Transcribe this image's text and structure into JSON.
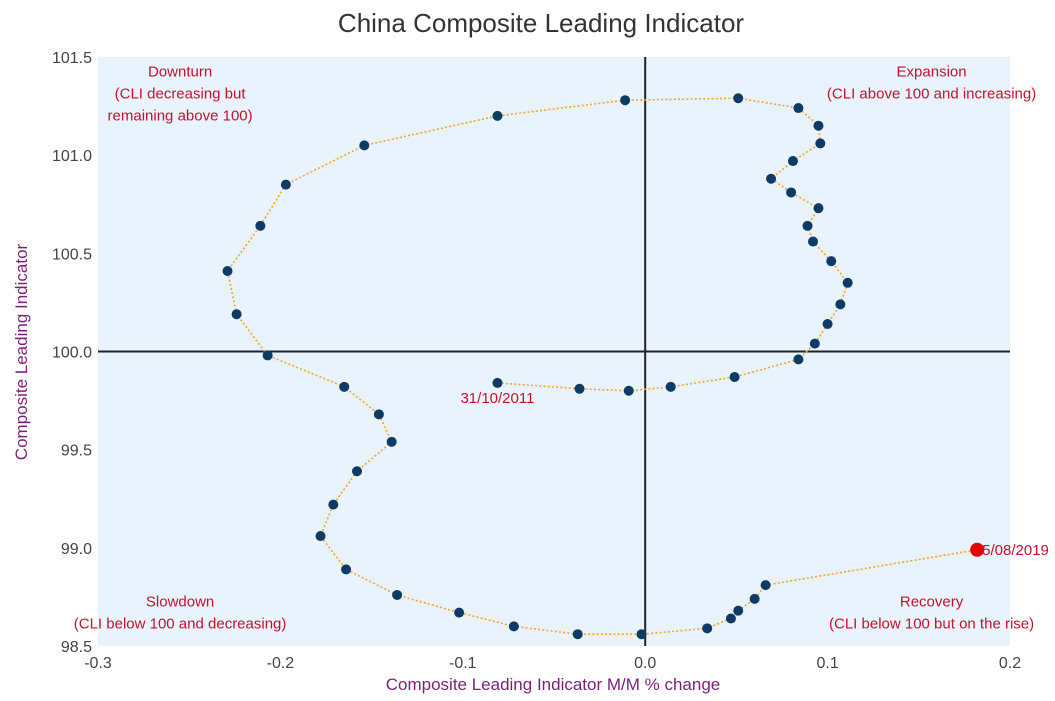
{
  "chart_data": {
    "type": "scatter",
    "title": "China Composite Leading Indicator",
    "xlabel": "Composite Leading Indicator M/M % change",
    "ylabel": "Composite Leading Indicator",
    "xlim": [
      -0.3,
      0.2
    ],
    "ylim": [
      98.5,
      101.5
    ],
    "x_ticks": [
      "-0.3",
      "-0.2",
      "-0.1",
      "0.0",
      "0.1",
      "0.2"
    ],
    "y_ticks": [
      "98.5",
      "99.0",
      "99.5",
      "100.0",
      "100.5",
      "101.0",
      "101.5"
    ],
    "grid": false,
    "reference_lines": {
      "x": 0.0,
      "y": 100.0
    },
    "colors": {
      "plot_background": "#e8f3fd",
      "point": "#0d3b66",
      "last_point": "#e60000",
      "connector": "#f0a830",
      "annotation": "#c8102e",
      "axis_title": "#7a1f7a"
    },
    "points": [
      {
        "x": -0.081,
        "y": 99.84
      },
      {
        "x": -0.036,
        "y": 99.81
      },
      {
        "x": -0.009,
        "y": 99.8
      },
      {
        "x": 0.014,
        "y": 99.82
      },
      {
        "x": 0.049,
        "y": 99.87
      },
      {
        "x": 0.084,
        "y": 99.96
      },
      {
        "x": 0.093,
        "y": 100.04
      },
      {
        "x": 0.1,
        "y": 100.14
      },
      {
        "x": 0.107,
        "y": 100.24
      },
      {
        "x": 0.111,
        "y": 100.35
      },
      {
        "x": 0.102,
        "y": 100.46
      },
      {
        "x": 0.092,
        "y": 100.56
      },
      {
        "x": 0.089,
        "y": 100.64
      },
      {
        "x": 0.095,
        "y": 100.73
      },
      {
        "x": 0.08,
        "y": 100.81
      },
      {
        "x": 0.069,
        "y": 100.88
      },
      {
        "x": 0.081,
        "y": 100.97
      },
      {
        "x": 0.096,
        "y": 101.06
      },
      {
        "x": 0.095,
        "y": 101.15
      },
      {
        "x": 0.084,
        "y": 101.24
      },
      {
        "x": 0.051,
        "y": 101.29
      },
      {
        "x": -0.011,
        "y": 101.28
      },
      {
        "x": -0.081,
        "y": 101.2
      },
      {
        "x": -0.154,
        "y": 101.05
      },
      {
        "x": -0.197,
        "y": 100.85
      },
      {
        "x": -0.211,
        "y": 100.64
      },
      {
        "x": -0.229,
        "y": 100.41
      },
      {
        "x": -0.224,
        "y": 100.19
      },
      {
        "x": -0.207,
        "y": 99.98
      },
      {
        "x": -0.165,
        "y": 99.82
      },
      {
        "x": -0.146,
        "y": 99.68
      },
      {
        "x": -0.139,
        "y": 99.54
      },
      {
        "x": -0.158,
        "y": 99.39
      },
      {
        "x": -0.171,
        "y": 99.22
      },
      {
        "x": -0.178,
        "y": 99.06
      },
      {
        "x": -0.164,
        "y": 98.89
      },
      {
        "x": -0.136,
        "y": 98.76
      },
      {
        "x": -0.102,
        "y": 98.67
      },
      {
        "x": -0.072,
        "y": 98.6
      },
      {
        "x": -0.037,
        "y": 98.56
      },
      {
        "x": -0.002,
        "y": 98.56
      },
      {
        "x": 0.034,
        "y": 98.59
      },
      {
        "x": 0.047,
        "y": 98.64
      },
      {
        "x": 0.051,
        "y": 98.68
      },
      {
        "x": 0.06,
        "y": 98.74
      },
      {
        "x": 0.066,
        "y": 98.81
      },
      {
        "x": 0.182,
        "y": 98.99
      }
    ],
    "point_labels": [
      {
        "x": -0.081,
        "y": 99.84,
        "text": "31/10/2011",
        "anchor": "below"
      },
      {
        "x": 0.182,
        "y": 98.99,
        "text": "5/08/2019",
        "anchor": "right"
      }
    ],
    "annotations": [
      {
        "x": -0.255,
        "y": 101.4,
        "lines": [
          "Downturn",
          "(CLI decreasing but",
          "remaining above 100)"
        ]
      },
      {
        "x": 0.157,
        "y": 101.4,
        "lines": [
          "Expansion",
          "(CLI above 100 and increasing)"
        ]
      },
      {
        "x": -0.255,
        "y": 98.7,
        "lines": [
          "Slowdown",
          "(CLI below 100 and decreasing)"
        ]
      },
      {
        "x": 0.157,
        "y": 98.7,
        "lines": [
          "Recovery",
          "(CLI below 100 but on the rise)"
        ]
      }
    ]
  }
}
